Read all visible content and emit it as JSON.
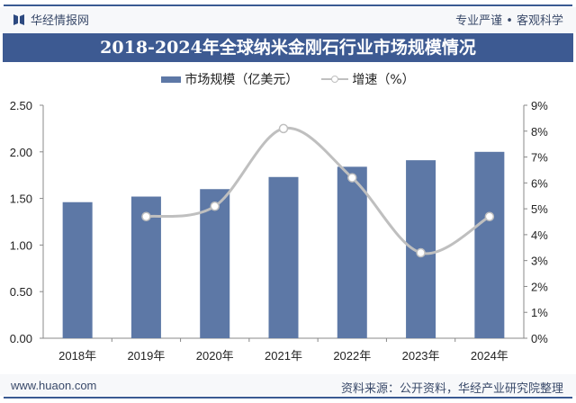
{
  "header": {
    "brand": "华经情报网",
    "slogan": "专业严谨 • 客观科学"
  },
  "footer": {
    "site": "www.huaon.com",
    "source": "资料来源：公开资料，华经产业研究院整理"
  },
  "colors": {
    "bar": "#5d78a6",
    "line": "#bfbfbf",
    "title_bg": "#3d5a92"
  },
  "chart_data": {
    "type": "bar+line",
    "title": "2018-2024年全球纳米金刚石行业市场规模情况",
    "categories": [
      "2018年",
      "2019年",
      "2020年",
      "2021年",
      "2022年",
      "2023年",
      "2024年"
    ],
    "series": [
      {
        "name": "市场规模（亿美元）",
        "type": "bar",
        "axis": "left",
        "values": [
          1.46,
          1.52,
          1.6,
          1.73,
          1.84,
          1.91,
          2.0
        ]
      },
      {
        "name": "增速（%）",
        "type": "line",
        "axis": "right",
        "smooth": true,
        "values": [
          null,
          4.7,
          5.1,
          8.1,
          6.2,
          3.3,
          4.7
        ]
      }
    ],
    "yleft": {
      "ylim": [
        0,
        2.5
      ],
      "ticks": [
        "0.00",
        "0.50",
        "1.00",
        "1.50",
        "2.00",
        "2.50"
      ]
    },
    "yright": {
      "ylim": [
        0,
        9
      ],
      "ticks": [
        "0%",
        "1%",
        "2%",
        "3%",
        "4%",
        "5%",
        "6%",
        "7%",
        "8%",
        "9%"
      ]
    },
    "legend": "top-center",
    "grid": false
  }
}
